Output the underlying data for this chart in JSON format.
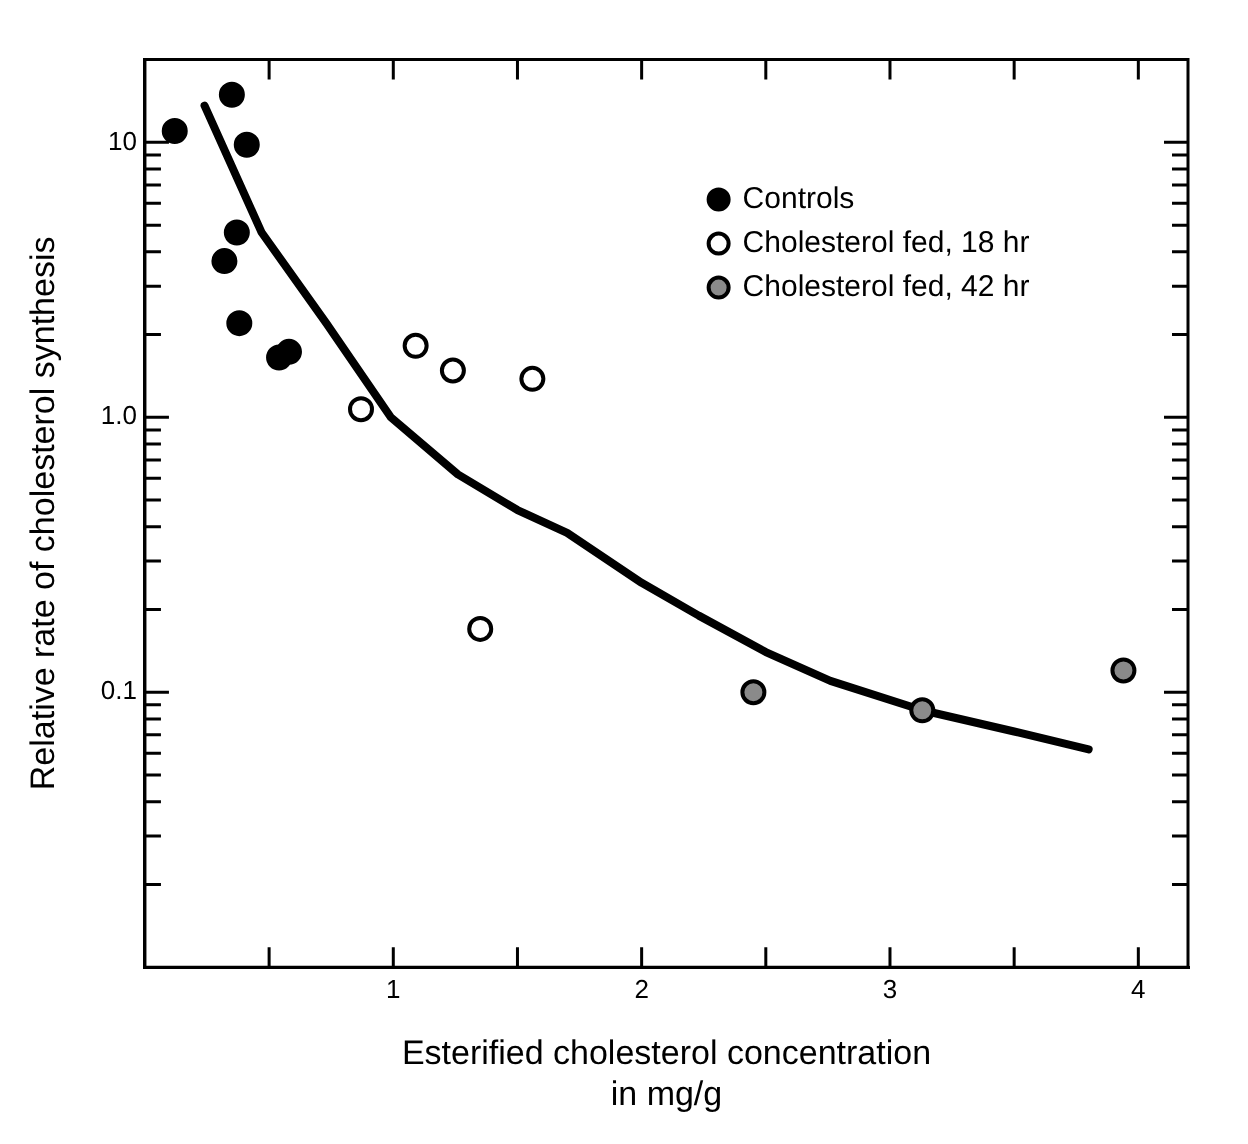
{
  "chart_data": {
    "type": "scatter",
    "xlabel": "Esterified cholesterol concentration\nin mg/g",
    "ylabel": "Relative rate of cholesterol synthesis",
    "log": "y",
    "grid": false,
    "legend": "top right",
    "marker": "circle",
    "xlim": [
      0,
      4.2
    ],
    "xticks": [
      {
        "value": 0.5,
        "label": null
      },
      1,
      {
        "value": 1.5,
        "label": null
      },
      2,
      {
        "value": 2.5,
        "label": null
      },
      3,
      {
        "value": 3.5,
        "label": null
      },
      4
    ],
    "ylim": [
      0.01,
      20
    ],
    "yticks": [
      {
        "value": 0.02,
        "label": null
      },
      {
        "value": 0.03,
        "label": null
      },
      {
        "value": 0.04,
        "label": null
      },
      {
        "value": 0.05,
        "label": null
      },
      {
        "value": 0.06,
        "label": null
      },
      {
        "value": 0.07,
        "label": null
      },
      {
        "value": 0.08,
        "label": null
      },
      {
        "value": 0.09,
        "label": null
      },
      0.1,
      {
        "value": 0.2,
        "label": null
      },
      {
        "value": 0.3,
        "label": null
      },
      {
        "value": 0.4,
        "label": null
      },
      {
        "value": 0.5,
        "label": null
      },
      {
        "value": 0.6,
        "label": null
      },
      {
        "value": 0.7,
        "label": null
      },
      {
        "value": 0.8,
        "label": null
      },
      {
        "value": 0.9,
        "label": null
      },
      {
        "value": 1,
        "label": "1.0"
      },
      {
        "value": 2,
        "label": null
      },
      {
        "value": 3,
        "label": null
      },
      {
        "value": 4,
        "label": null
      },
      {
        "value": 5,
        "label": null
      },
      {
        "value": 6,
        "label": null
      },
      {
        "value": 7,
        "label": null
      },
      {
        "value": 8,
        "label": null
      },
      {
        "value": 9,
        "label": null
      },
      10
    ],
    "series": [
      {
        "name": "Controls",
        "color": "#000000",
        "x": [
          0.12,
          0.35,
          0.41,
          0.37,
          0.32,
          0.38,
          0.54,
          0.58
        ],
        "values": [
          11,
          14.9,
          9.8,
          4.7,
          3.7,
          2.2,
          1.65,
          1.73
        ]
      },
      {
        "name": "Cholesterol fed, 18 hr",
        "color": "#000000",
        "x": [
          0.87,
          1.09,
          1.24,
          1.56,
          1.35
        ],
        "values": [
          1.07,
          1.82,
          1.48,
          1.38,
          0.17
        ]
      },
      {
        "name": "Cholesterol fed, 42 hr",
        "color": "#000000",
        "x": [
          2.45,
          3.13,
          3.94
        ],
        "values": [
          0.1,
          0.086,
          0.12
        ]
      },
      {
        "type": "line",
        "color": "#000000",
        "marker": "none",
        "x": [
          0.24,
          0.47,
          0.73,
          0.99,
          1.26,
          1.5,
          1.7,
          2.0,
          2.23,
          2.5,
          2.76,
          3.13,
          3.5,
          3.8
        ],
        "values": [
          13.6,
          4.7,
          2.2,
          1.0,
          0.62,
          0.46,
          0.38,
          0.25,
          0.19,
          0.14,
          0.11,
          0.086,
          0.072,
          0.062
        ]
      }
    ]
  }
}
